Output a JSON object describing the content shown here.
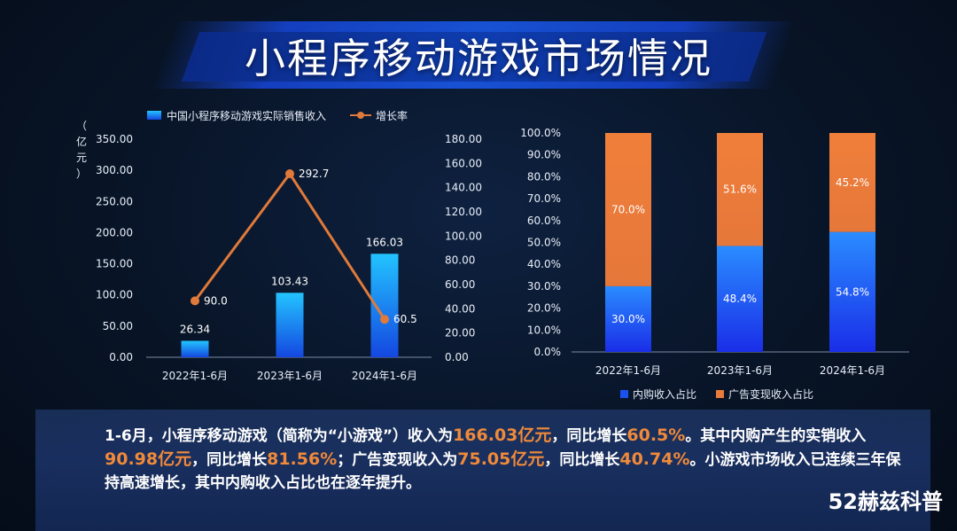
{
  "title": "小程序移动游戏市场情况",
  "chart_data": [
    {
      "type": "bar",
      "categories": [
        "2022年1-6月",
        "2023年1-6月",
        "2024年1-6月"
      ],
      "series": [
        {
          "name": "中国小程序移动游戏实际销售收入",
          "type": "bar",
          "axis": "left",
          "values": [
            26.34,
            103.43,
            166.03
          ],
          "labels": [
            "26.34",
            "103.43",
            "166.03"
          ],
          "color": "#1f7fe8"
        },
        {
          "name": "增长率",
          "type": "line",
          "axis": "right",
          "values": [
            90.0,
            292.7,
            60.5
          ],
          "labels": [
            "90.0",
            "292.7",
            "60.5"
          ],
          "color": "#e07a3a"
        }
      ],
      "ylabel": "（亿元）",
      "ylim": [
        0,
        350
      ],
      "y_ticks": [
        "350.00",
        "300.00",
        "250.00",
        "200.00",
        "150.00",
        "100.00",
        "50.00",
        "0.00"
      ],
      "y2lim": [
        0,
        180
      ],
      "y2_ticks": [
        "180.00",
        "160.00",
        "140.00",
        "120.00",
        "100.00",
        "80.00",
        "60.00",
        "40.00",
        "20.00",
        "0.00"
      ],
      "legend": "top"
    },
    {
      "type": "bar",
      "stacked": true,
      "categories": [
        "2022年1-6月",
        "2023年1-6月",
        "2024年1-6月"
      ],
      "series": [
        {
          "name": "内购收入占比",
          "values": [
            30.0,
            48.4,
            54.8
          ],
          "labels": [
            "30.0%",
            "48.4%",
            "54.8%"
          ],
          "color": "#1a52f0"
        },
        {
          "name": "广告变现收入占比",
          "values": [
            70.0,
            51.6,
            45.2
          ],
          "labels": [
            "70.0%",
            "51.6%",
            "45.2%"
          ],
          "color": "#e97b3a"
        }
      ],
      "ylim": [
        0,
        100
      ],
      "y_ticks": [
        "100.0%",
        "90.0%",
        "80.0%",
        "70.0%",
        "60.0%",
        "50.0%",
        "40.0%",
        "30.0%",
        "20.0%",
        "10.0%",
        "0.0%"
      ],
      "legend": "bottom"
    }
  ],
  "summary": {
    "p1": "1-6月，小程序移动游戏（简称为“小游戏”）收入为",
    "h1": "166.03亿元",
    "p2": "，同比增长",
    "h2": "60.5%",
    "p3": "。其中内购产生的实销收入",
    "h3": "90.98亿元",
    "p4": "，同比增长",
    "h4": "81.56%",
    "p5": "；广告变现收入为",
    "h5": "75.05亿元",
    "p6": "，同比增长",
    "h6": "40.74%",
    "p7": "。小游戏市场收入已连续三年保持高速增长，其中内购收入占比也在逐年提升。"
  },
  "watermark": "52赫兹科普"
}
